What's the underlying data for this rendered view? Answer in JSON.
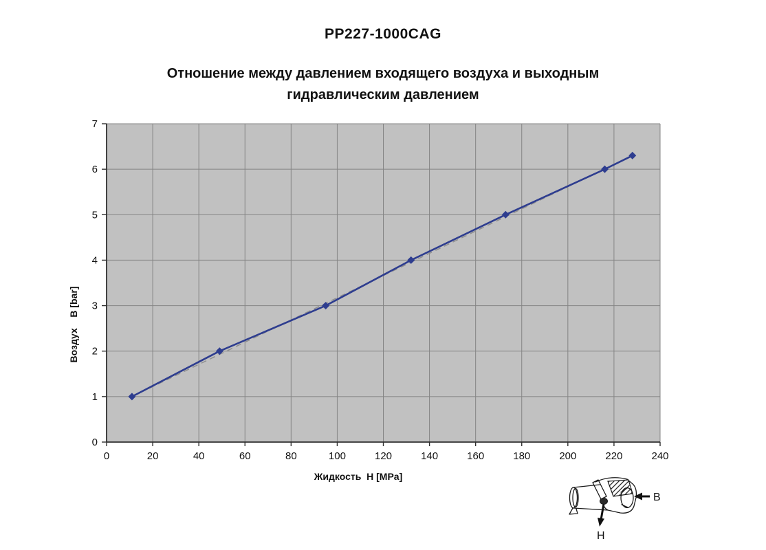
{
  "page": {
    "title": "PP227-1000CAG",
    "subtitle_lines": [
      "Отношение между давлением входящего воздуха и выходным",
      "гидравлическим давлением"
    ]
  },
  "chart_data": {
    "type": "line",
    "title": "PP227-1000CAG",
    "subtitle": "Отношение между давлением входящего воздуха и выходным гидравлическим давлением",
    "xlabel": "Жидкость  Н [MPa]",
    "ylabel": "Воздух    В [bar]",
    "xlim": [
      0,
      240
    ],
    "ylim": [
      0,
      7
    ],
    "x_ticks": [
      0,
      20,
      40,
      60,
      80,
      100,
      120,
      140,
      160,
      180,
      200,
      220,
      240
    ],
    "y_ticks": [
      0,
      1,
      2,
      3,
      4,
      5,
      6,
      7
    ],
    "grid": true,
    "legend": "none",
    "colors": {
      "plot_bg": "#c1c1c1",
      "grid": "#848484",
      "axis": "#2f2f2f",
      "tick_text": "#111111",
      "series": "#2e3d8f",
      "trend": "#8f8f8f"
    },
    "series": [
      {
        "name": "air-vs-hydraulic-pressure",
        "style": "solid",
        "marker": "diamond",
        "points": [
          [
            11,
            1
          ],
          [
            49,
            2
          ],
          [
            95,
            3
          ],
          [
            132,
            4
          ],
          [
            173,
            5
          ],
          [
            216,
            6
          ],
          [
            228,
            6.3
          ]
        ]
      },
      {
        "name": "trendline",
        "style": "dashed",
        "marker": "none",
        "points": [
          [
            11,
            1
          ],
          [
            228,
            6.3
          ]
        ]
      }
    ]
  },
  "pump": {
    "air_label": "В",
    "fluid_label": "Н"
  }
}
